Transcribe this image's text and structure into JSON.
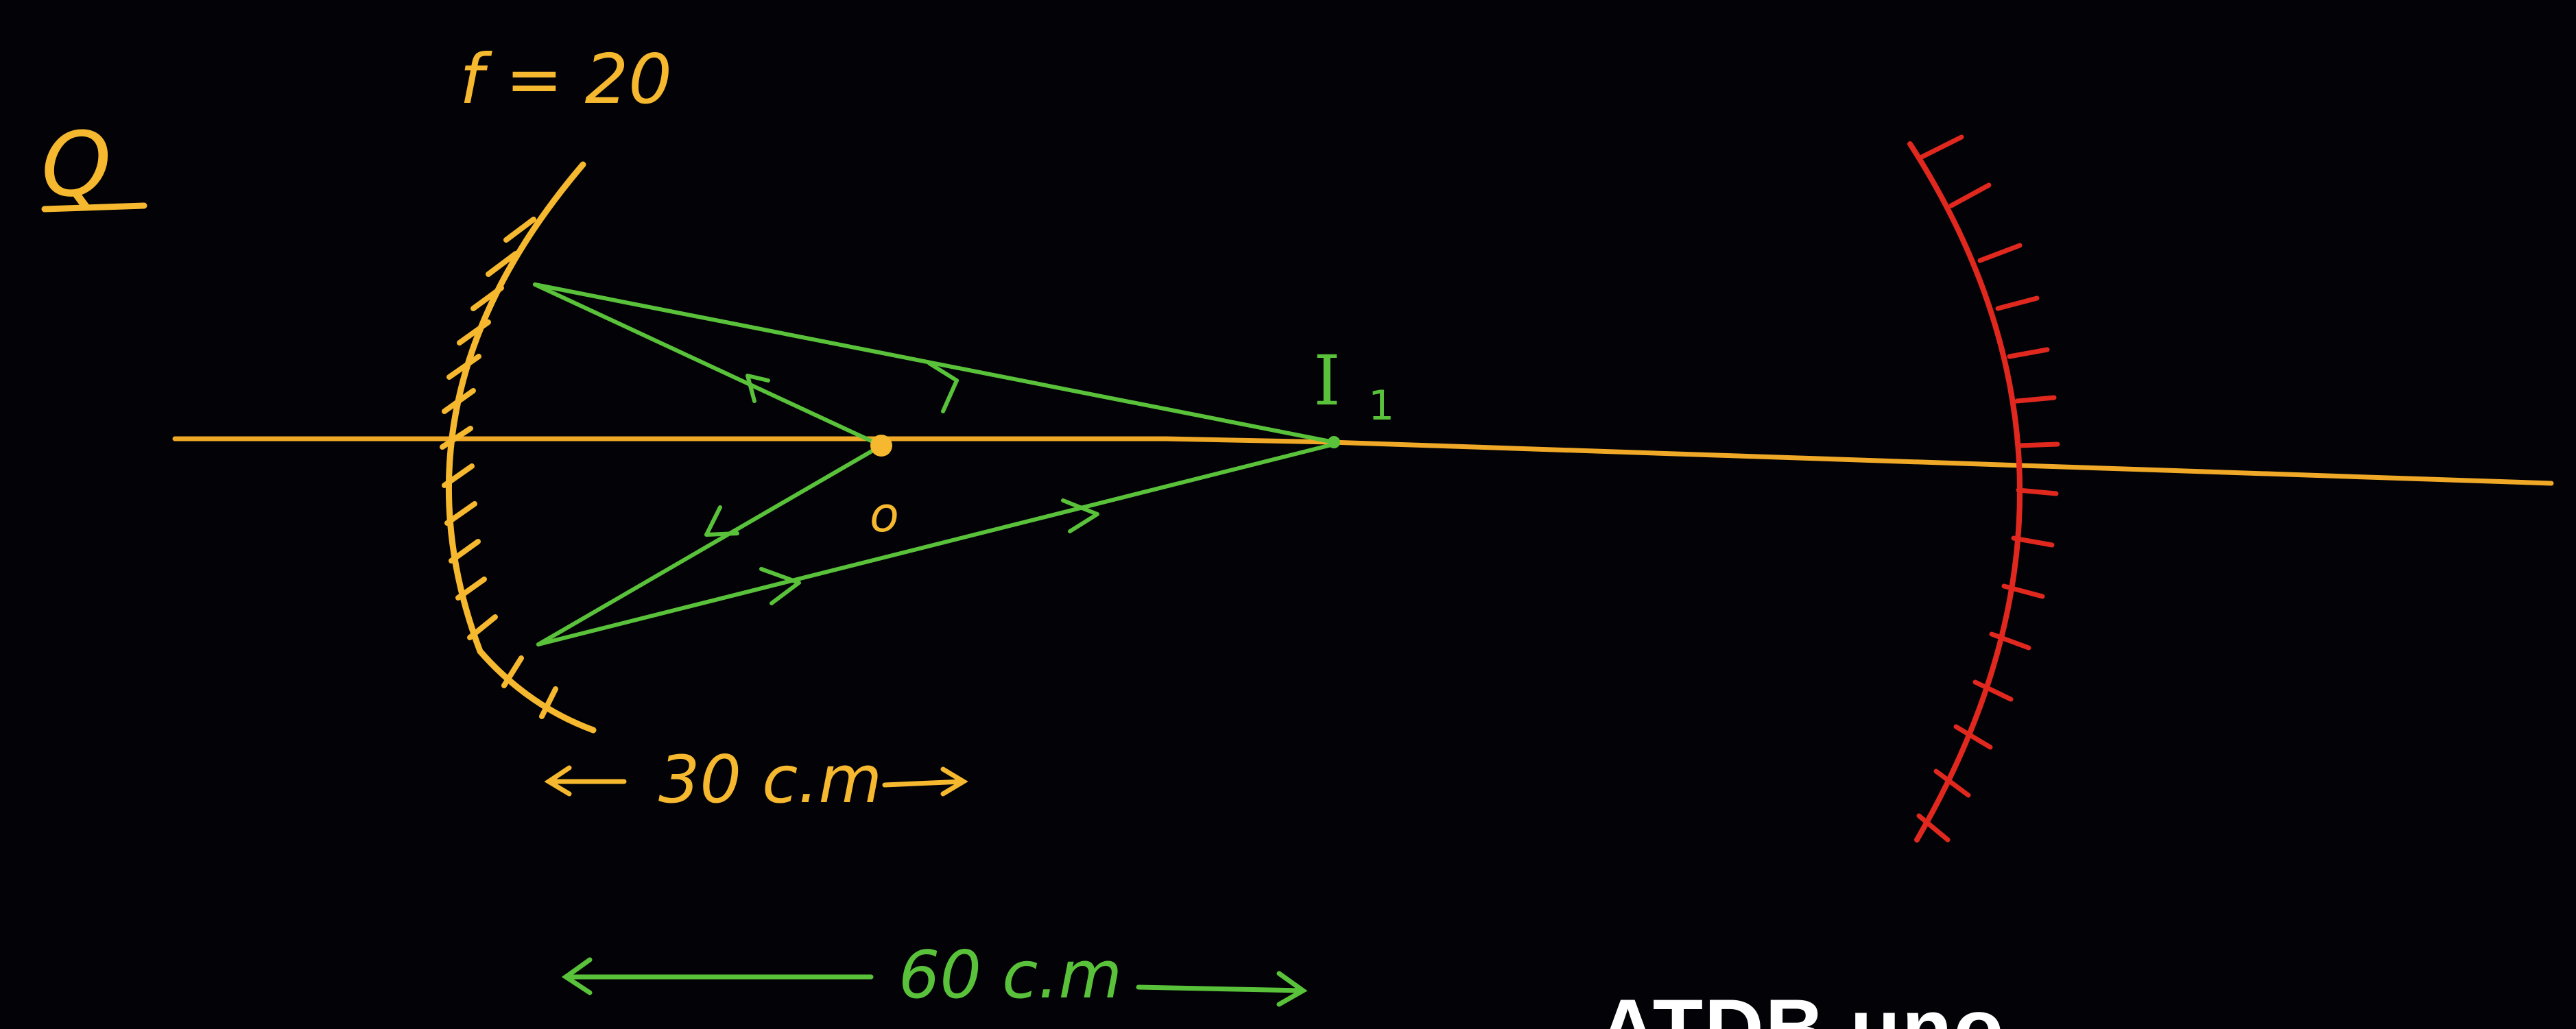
{
  "labels": {
    "question": "Q",
    "focal": "f = 20",
    "image": "I",
    "image_sub": "1",
    "center": "o",
    "dist_short": "30 c.m",
    "dist_long": "60 c.m"
  },
  "watermark": "ATDB uno",
  "colors": {
    "background": "#020207",
    "yellow_mirror": "#f5b82e",
    "red_mirror": "#e0281e",
    "rays": "#59c23a",
    "text": "#f5b82e"
  }
}
